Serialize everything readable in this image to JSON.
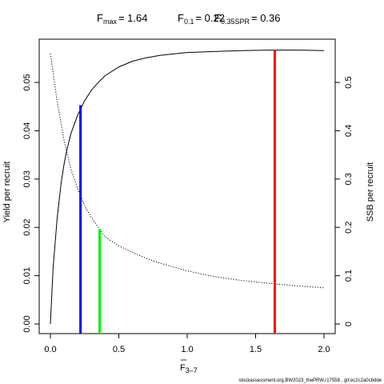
{
  "chart_data": {
    "type": "line",
    "title": {
      "fmax_label": "F",
      "fmax_sub": "max",
      "fmax_value": "= 1.64",
      "f01_label": "F",
      "f01_sub": "0.1",
      "f01_value": "= 0.22",
      "fspr_label": "F",
      "fspr_sub": "0.35SPR",
      "fspr_value": "= 0.36"
    },
    "xlabel": "F",
    "xlabel_sub": "3–7",
    "ylabel_left": "Yield per recruit",
    "ylabel_right": "SSB per recruit",
    "xlim": [
      0,
      2.0
    ],
    "ylim_left": [
      0,
      0.0568
    ],
    "ylim_right": [
      0,
      0.568
    ],
    "x_ticks": [
      "0.0",
      "0.5",
      "1.0",
      "1.5",
      "2.0"
    ],
    "y_left_ticks": [
      "0.00",
      "0.01",
      "0.02",
      "0.03",
      "0.04",
      "0.05"
    ],
    "y_right_ticks": [
      "0",
      "0.1",
      "0.2",
      "0.3",
      "0.4",
      "0.5"
    ],
    "grid": false,
    "series": [
      {
        "axis": "left",
        "style": "solid",
        "x": [
          0,
          0.02,
          0.05,
          0.08,
          0.1,
          0.12,
          0.15,
          0.2,
          0.25,
          0.3,
          0.35,
          0.4,
          0.5,
          0.6,
          0.7,
          0.8,
          0.9,
          1.0,
          1.1,
          1.2,
          1.4,
          1.6,
          1.64,
          1.8,
          2.0
        ],
        "y": [
          0,
          0.0117,
          0.0221,
          0.0295,
          0.0331,
          0.036,
          0.0394,
          0.0433,
          0.0462,
          0.0484,
          0.05,
          0.0514,
          0.0532,
          0.0544,
          0.0551,
          0.0556,
          0.0559,
          0.0562,
          0.0563,
          0.0564,
          0.0566,
          0.0567,
          0.0567,
          0.0567,
          0.0566
        ]
      },
      {
        "axis": "right",
        "style": "dotted",
        "x": [
          0,
          0.05,
          0.1,
          0.15,
          0.2,
          0.25,
          0.3,
          0.36,
          0.4,
          0.5,
          0.6,
          0.7,
          0.8,
          1.0,
          1.2,
          1.4,
          1.6,
          1.8,
          2.0
        ],
        "y": [
          0.56,
          0.46,
          0.38,
          0.32,
          0.28,
          0.245,
          0.22,
          0.196,
          0.18,
          0.162,
          0.148,
          0.136,
          0.126,
          0.11,
          0.098,
          0.09,
          0.084,
          0.079,
          0.075
        ]
      }
    ],
    "reference_lines": [
      {
        "x": 0.22,
        "color": "#0000ff",
        "top_value": 0.0453,
        "top_axis": "left"
      },
      {
        "x": 0.36,
        "color": "#00ee00",
        "top_value": 0.196,
        "top_axis": "right"
      },
      {
        "x": 1.64,
        "color": "#ff0000",
        "top_value": 0.0567,
        "top_axis": "left"
      }
    ]
  },
  "footer_text": "stockassessment.org,BW2023_thePRW,r17558 , git:ec2c2a0c6dde"
}
